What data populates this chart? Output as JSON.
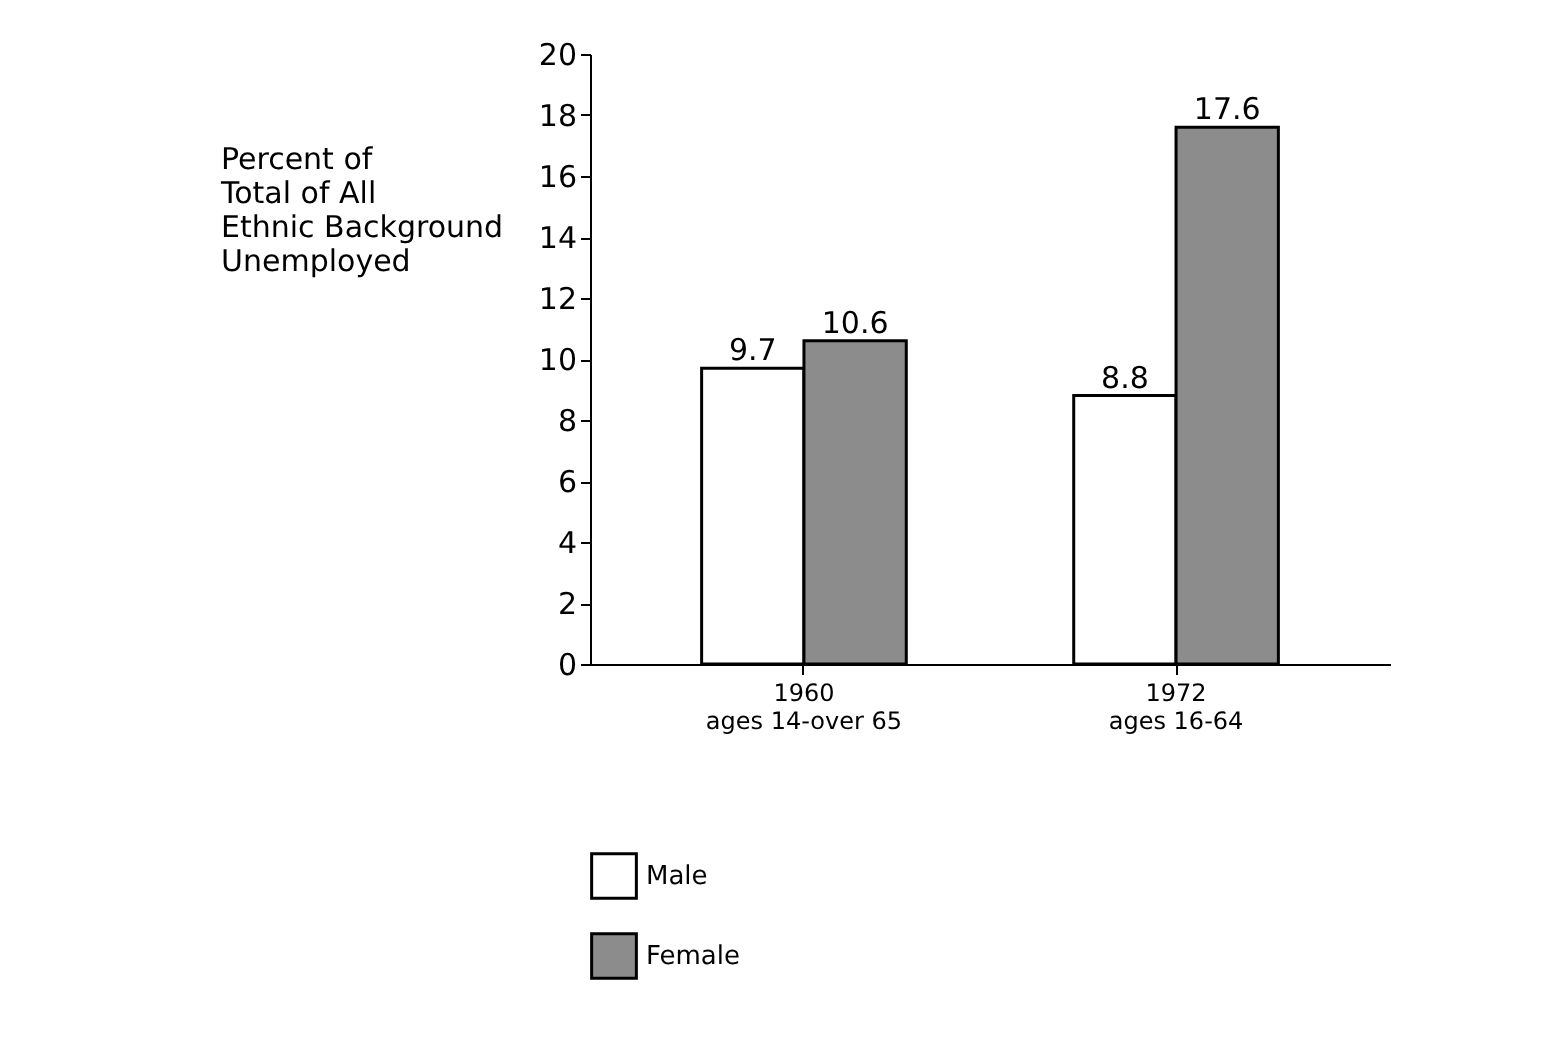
{
  "chart_data": {
    "type": "bar",
    "ylabel": "Percent of\nTotal of All\nEthnic Background\nUnemployed",
    "categories": [
      "1960\nages 14-over 65",
      "1972\nages 16-64"
    ],
    "series": [
      {
        "name": "Male",
        "color": "#ffffff",
        "values": [
          9.7,
          8.8
        ]
      },
      {
        "name": "Female",
        "color": "#8c8c8c",
        "values": [
          10.6,
          17.6
        ]
      }
    ],
    "ylim": [
      0,
      20
    ],
    "yticks": [
      0,
      2,
      4,
      6,
      8,
      10,
      12,
      14,
      16,
      18,
      20
    ],
    "grid": false,
    "legend": "bottom",
    "data_labels": true
  }
}
